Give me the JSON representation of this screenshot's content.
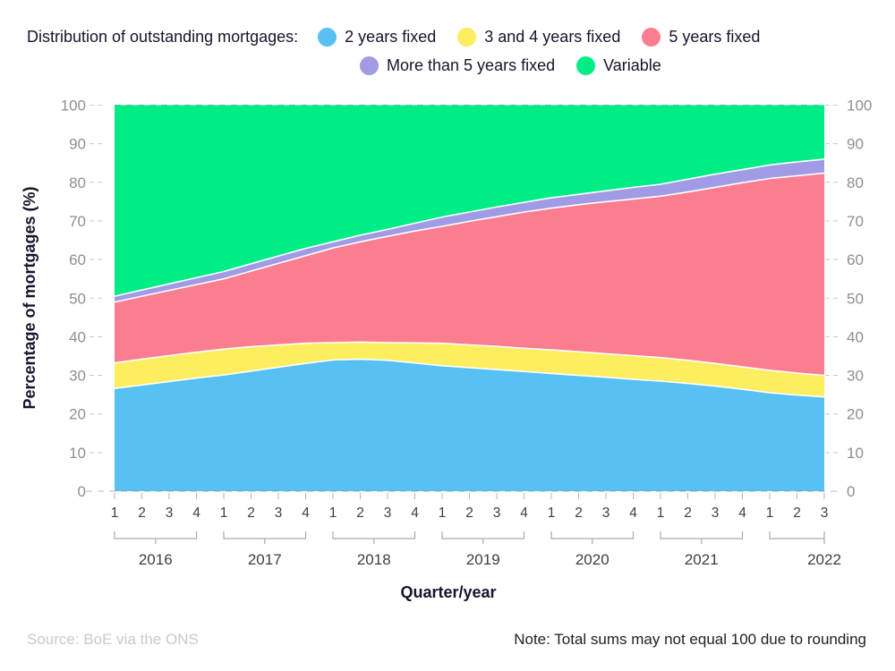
{
  "header": {
    "title": "Distribution of outstanding mortgages:"
  },
  "legend": {
    "items": [
      {
        "label": "2 years fixed",
        "color": "#56c1f2"
      },
      {
        "label": "3 and 4 years fixed",
        "color": "#fcee5e"
      },
      {
        "label": "5 years fixed",
        "color": "#fa7e8f"
      },
      {
        "label": "More than 5 years fixed",
        "color": "#a09be4"
      },
      {
        "label": "Variable",
        "color": "#00ed86"
      }
    ]
  },
  "chart_data": {
    "type": "area",
    "stacked": true,
    "title": "Distribution of outstanding mortgages",
    "xlabel": "Quarter/year",
    "ylabel": "Percentage of mortgages (%)",
    "ylim": [
      0,
      100
    ],
    "ytick_step": 10,
    "grid": "dashed top and bottom only",
    "legend_position": "top",
    "years": [
      {
        "label": "2016",
        "quarters": [
          "1",
          "2",
          "3",
          "4"
        ]
      },
      {
        "label": "2017",
        "quarters": [
          "1",
          "2",
          "3",
          "4"
        ]
      },
      {
        "label": "2018",
        "quarters": [
          "1",
          "2",
          "3",
          "4"
        ]
      },
      {
        "label": "2019",
        "quarters": [
          "1",
          "2",
          "3",
          "4"
        ]
      },
      {
        "label": "2020",
        "quarters": [
          "1",
          "2",
          "3",
          "4"
        ]
      },
      {
        "label": "2021",
        "quarters": [
          "1",
          "2",
          "3",
          "4"
        ]
      },
      {
        "label": "2022",
        "quarters": [
          "1",
          "2",
          "3"
        ]
      }
    ],
    "series": [
      {
        "name": "2 years fixed",
        "color": "#56c1f2",
        "values": [
          26.6,
          27.5,
          28.4,
          29.3,
          30.1,
          31.1,
          32.1,
          33.1,
          34.0,
          34.2,
          33.9,
          33.2,
          32.5,
          32.0,
          31.5,
          31.0,
          30.5,
          30.0,
          29.5,
          29.0,
          28.5,
          27.9,
          27.2,
          26.4,
          25.5,
          24.9,
          24.4
        ]
      },
      {
        "name": "3 and 4 years fixed",
        "color": "#fcee5e",
        "values": [
          6.6,
          6.7,
          6.7,
          6.7,
          6.7,
          6.3,
          5.8,
          5.2,
          4.5,
          4.4,
          4.6,
          5.2,
          5.8,
          5.9,
          6.0,
          6.0,
          6.1,
          6.1,
          6.1,
          6.1,
          6.1,
          6.0,
          5.9,
          5.8,
          5.8,
          5.7,
          5.6
        ]
      },
      {
        "name": "5 years fixed",
        "color": "#fa7e8f",
        "values": [
          15.8,
          16.3,
          16.9,
          17.5,
          18.2,
          19.6,
          21.1,
          22.7,
          24.5,
          26.0,
          27.5,
          29.0,
          30.3,
          32.0,
          33.6,
          35.3,
          36.7,
          38.1,
          39.4,
          40.6,
          41.8,
          43.6,
          45.6,
          47.7,
          49.7,
          51.1,
          52.4
        ]
      },
      {
        "name": "More than 5 years fixed",
        "color": "#a09be4",
        "values": [
          1.5,
          1.6,
          1.7,
          1.8,
          1.9,
          1.9,
          1.9,
          1.9,
          1.6,
          1.7,
          1.8,
          2.0,
          2.4,
          2.4,
          2.5,
          2.5,
          2.7,
          2.7,
          2.8,
          3.0,
          3.1,
          3.3,
          3.4,
          3.4,
          3.5,
          3.6,
          3.6
        ]
      },
      {
        "name": "Variable",
        "color": "#00ed86",
        "values": [
          49.5,
          47.9,
          46.3,
          44.7,
          43.1,
          41.1,
          39.1,
          37.1,
          35.4,
          33.7,
          32.2,
          30.6,
          29.0,
          27.7,
          26.4,
          25.2,
          24.0,
          23.1,
          22.2,
          21.3,
          20.5,
          19.2,
          17.9,
          16.7,
          15.5,
          14.7,
          14.0
        ]
      }
    ]
  },
  "footer": {
    "source": "Source: BoE via the ONS",
    "note": "Note: Total sums may not equal 100 due to rounding"
  }
}
